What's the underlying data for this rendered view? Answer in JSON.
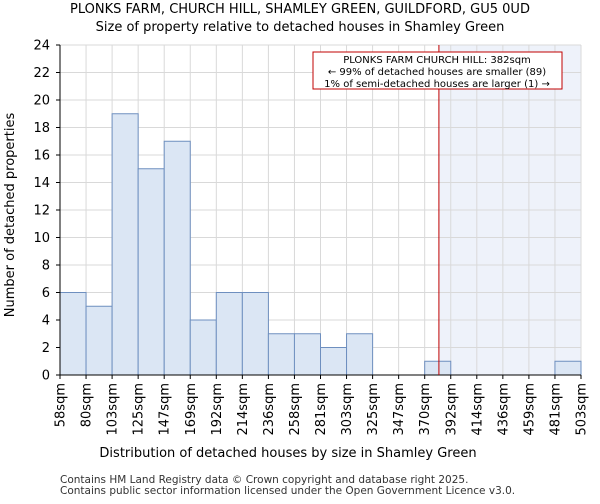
{
  "chart_data": {
    "type": "bar",
    "title_line1": "PLONKS FARM, CHURCH HILL, SHAMLEY GREEN, GUILDFORD, GU5 0UD",
    "title_line2": "Size of property relative to detached houses in Shamley Green",
    "xlabel": "Distribution of detached houses by size in Shamley Green",
    "ylabel": "Number of detached properties",
    "ylim": [
      0,
      24
    ],
    "yticks": [
      0,
      2,
      4,
      6,
      8,
      10,
      12,
      14,
      16,
      18,
      20,
      22,
      24
    ],
    "bin_edges": [
      "58sqm",
      "80sqm",
      "103sqm",
      "125sqm",
      "147sqm",
      "169sqm",
      "192sqm",
      "214sqm",
      "236sqm",
      "258sqm",
      "281sqm",
      "303sqm",
      "325sqm",
      "347sqm",
      "370sqm",
      "392sqm",
      "414sqm",
      "436sqm",
      "459sqm",
      "481sqm",
      "503sqm"
    ],
    "values": [
      6,
      5,
      19,
      15,
      17,
      4,
      6,
      6,
      3,
      3,
      2,
      3,
      0,
      0,
      1,
      0,
      0,
      0,
      0,
      1
    ],
    "marker_value_sqm": 382,
    "annotation": {
      "line1": "PLONKS FARM CHURCH HILL: 382sqm",
      "line2": "← 99% of detached houses are smaller (89)",
      "line3": "1% of semi-detached houses are larger (1) →"
    },
    "colors": {
      "bar_fill": "#dbe6f4",
      "bar_stroke": "#6e8fbf",
      "marker": "#c00000",
      "highlight": "#eef2fa",
      "grid": "#d9d9d9"
    }
  },
  "footer": {
    "line1": "Contains HM Land Registry data © Crown copyright and database right 2025.",
    "line2": "Contains public sector information licensed under the Open Government Licence v3.0."
  }
}
